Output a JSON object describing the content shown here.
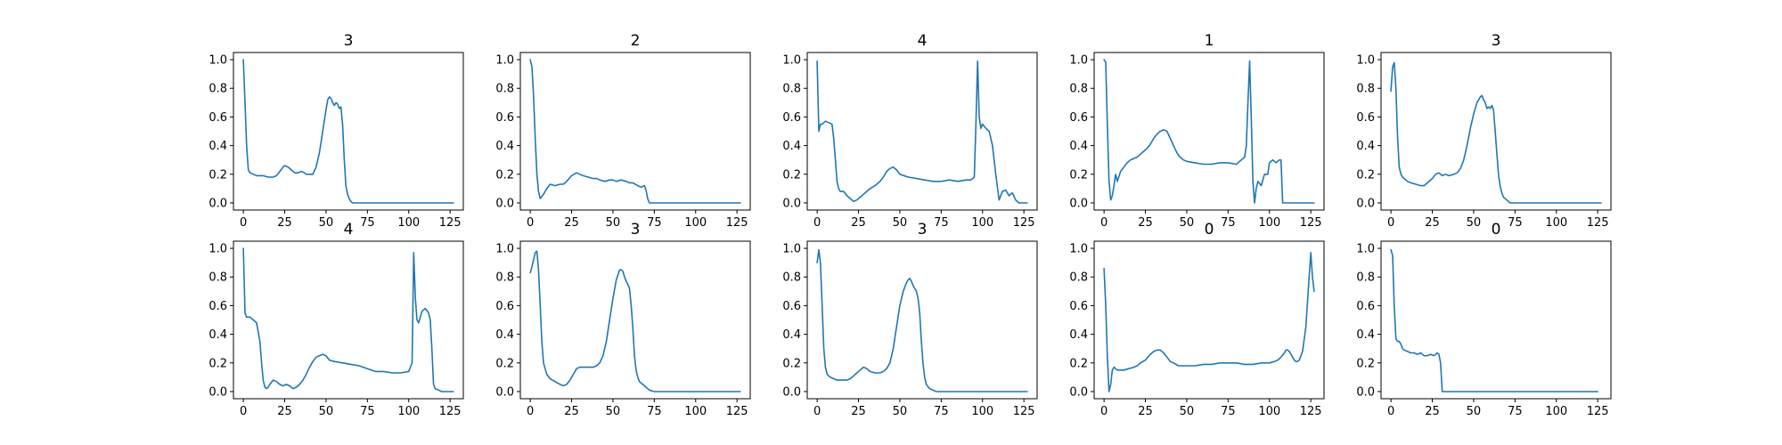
{
  "chart_data": [
    {
      "type": "line",
      "title": "3",
      "xlim": [
        -6,
        133
      ],
      "ylim": [
        -0.05,
        1.05
      ],
      "xticks": [
        0,
        25,
        50,
        75,
        100,
        125
      ],
      "yticks": [
        0.0,
        0.2,
        0.4,
        0.6,
        0.8,
        1.0
      ],
      "color": "#1f77b4",
      "x": [
        0,
        1,
        2,
        3,
        4,
        6,
        8,
        10,
        12,
        15,
        18,
        20,
        22,
        24,
        25,
        27,
        29,
        31,
        33,
        35,
        37,
        38,
        40,
        42,
        44,
        46,
        48,
        50,
        51,
        52,
        53,
        54,
        55,
        56,
        57,
        58,
        59,
        60,
        61,
        62,
        63,
        64,
        65,
        66,
        68,
        70,
        75,
        80,
        90,
        100,
        110,
        120,
        127
      ],
      "y": [
        1.0,
        0.7,
        0.4,
        0.23,
        0.21,
        0.2,
        0.19,
        0.19,
        0.19,
        0.18,
        0.18,
        0.19,
        0.22,
        0.25,
        0.26,
        0.25,
        0.23,
        0.21,
        0.21,
        0.22,
        0.21,
        0.2,
        0.2,
        0.2,
        0.25,
        0.35,
        0.5,
        0.65,
        0.72,
        0.74,
        0.73,
        0.7,
        0.68,
        0.7,
        0.69,
        0.66,
        0.67,
        0.55,
        0.3,
        0.12,
        0.06,
        0.03,
        0.01,
        0.0,
        0.0,
        0.0,
        0.0,
        0.0,
        0.0,
        0.0,
        0.0,
        0.0,
        0.0
      ]
    },
    {
      "type": "line",
      "title": "2",
      "xlim": [
        -6,
        133
      ],
      "ylim": [
        -0.05,
        1.05
      ],
      "xticks": [
        0,
        25,
        50,
        75,
        100,
        125
      ],
      "yticks": [
        0.0,
        0.2,
        0.4,
        0.6,
        0.8,
        1.0
      ],
      "color": "#1f77b4",
      "x": [
        0,
        1,
        2,
        3,
        4,
        5,
        6,
        8,
        10,
        12,
        15,
        18,
        20,
        22,
        25,
        28,
        30,
        32,
        35,
        38,
        40,
        42,
        45,
        48,
        50,
        52,
        55,
        58,
        60,
        62,
        65,
        67,
        69,
        70,
        71,
        72,
        75,
        80,
        90,
        100,
        110,
        120,
        127
      ],
      "y": [
        1.0,
        0.95,
        0.75,
        0.45,
        0.2,
        0.08,
        0.03,
        0.06,
        0.1,
        0.13,
        0.12,
        0.13,
        0.13,
        0.15,
        0.19,
        0.21,
        0.2,
        0.19,
        0.18,
        0.17,
        0.17,
        0.16,
        0.15,
        0.16,
        0.16,
        0.15,
        0.16,
        0.15,
        0.14,
        0.14,
        0.12,
        0.11,
        0.12,
        0.09,
        0.03,
        0.0,
        0.0,
        0.0,
        0.0,
        0.0,
        0.0,
        0.0,
        0.0
      ]
    },
    {
      "type": "line",
      "title": "4",
      "xlim": [
        -6,
        133
      ],
      "ylim": [
        -0.05,
        1.05
      ],
      "xticks": [
        0,
        25,
        50,
        75,
        100,
        125
      ],
      "yticks": [
        0.0,
        0.2,
        0.4,
        0.6,
        0.8,
        1.0
      ],
      "color": "#1f77b4",
      "x": [
        0,
        1,
        2,
        3,
        5,
        7,
        9,
        10,
        11,
        12,
        13,
        14,
        16,
        18,
        20,
        22,
        24,
        26,
        28,
        30,
        32,
        35,
        38,
        40,
        42,
        44,
        46,
        48,
        50,
        55,
        60,
        65,
        70,
        75,
        80,
        85,
        90,
        93,
        95,
        96,
        97,
        98,
        99,
        100,
        102,
        104,
        106,
        108,
        110,
        112,
        114,
        116,
        118,
        120,
        122,
        125,
        127
      ],
      "y": [
        0.99,
        0.5,
        0.55,
        0.55,
        0.57,
        0.56,
        0.55,
        0.45,
        0.3,
        0.15,
        0.1,
        0.08,
        0.08,
        0.05,
        0.03,
        0.01,
        0.02,
        0.04,
        0.06,
        0.08,
        0.1,
        0.12,
        0.15,
        0.18,
        0.22,
        0.24,
        0.25,
        0.23,
        0.2,
        0.18,
        0.17,
        0.16,
        0.15,
        0.15,
        0.16,
        0.15,
        0.16,
        0.16,
        0.18,
        0.55,
        0.99,
        0.6,
        0.52,
        0.55,
        0.52,
        0.5,
        0.4,
        0.2,
        0.02,
        0.08,
        0.09,
        0.05,
        0.07,
        0.02,
        0.0,
        0.0,
        0.0
      ]
    },
    {
      "type": "line",
      "title": "1",
      "xlim": [
        -6,
        133
      ],
      "ylim": [
        -0.05,
        1.05
      ],
      "xticks": [
        0,
        25,
        50,
        75,
        100,
        125
      ],
      "yticks": [
        0.0,
        0.2,
        0.4,
        0.6,
        0.8,
        1.0
      ],
      "color": "#1f77b4",
      "x": [
        0,
        1,
        2,
        3,
        4,
        5,
        6,
        7,
        8,
        10,
        12,
        14,
        16,
        18,
        20,
        22,
        24,
        26,
        28,
        30,
        32,
        34,
        36,
        38,
        40,
        42,
        44,
        46,
        48,
        50,
        55,
        60,
        65,
        70,
        75,
        80,
        83,
        85,
        86,
        87,
        88,
        89,
        90,
        91,
        92,
        93,
        95,
        97,
        99,
        100,
        102,
        104,
        106,
        107,
        108,
        110,
        115,
        120,
        125,
        127
      ],
      "y": [
        1.0,
        0.98,
        0.55,
        0.15,
        0.02,
        0.05,
        0.12,
        0.2,
        0.15,
        0.22,
        0.25,
        0.28,
        0.3,
        0.31,
        0.32,
        0.34,
        0.36,
        0.38,
        0.41,
        0.45,
        0.48,
        0.5,
        0.51,
        0.5,
        0.45,
        0.4,
        0.35,
        0.32,
        0.3,
        0.29,
        0.28,
        0.27,
        0.27,
        0.28,
        0.28,
        0.27,
        0.3,
        0.32,
        0.4,
        0.7,
        0.99,
        0.6,
        0.15,
        0.0,
        0.1,
        0.15,
        0.12,
        0.2,
        0.2,
        0.28,
        0.3,
        0.28,
        0.3,
        0.3,
        0.0,
        0.0,
        0.0,
        0.0,
        0.0,
        0.0
      ]
    },
    {
      "type": "line",
      "title": "3",
      "xlim": [
        -6,
        133
      ],
      "ylim": [
        -0.05,
        1.05
      ],
      "xticks": [
        0,
        25,
        50,
        75,
        100,
        125
      ],
      "yticks": [
        0.0,
        0.2,
        0.4,
        0.6,
        0.8,
        1.0
      ],
      "color": "#1f77b4",
      "x": [
        0,
        1,
        2,
        3,
        4,
        5,
        6,
        7,
        8,
        10,
        12,
        15,
        18,
        20,
        22,
        25,
        27,
        29,
        31,
        33,
        35,
        38,
        40,
        42,
        44,
        46,
        48,
        50,
        52,
        54,
        55,
        56,
        57,
        58,
        59,
        60,
        61,
        62,
        63,
        64,
        65,
        66,
        67,
        68,
        70,
        72,
        75,
        80,
        90,
        100,
        110,
        120,
        127
      ],
      "y": [
        0.78,
        0.95,
        0.98,
        0.8,
        0.45,
        0.25,
        0.2,
        0.18,
        0.17,
        0.15,
        0.14,
        0.13,
        0.12,
        0.12,
        0.14,
        0.17,
        0.2,
        0.21,
        0.19,
        0.2,
        0.19,
        0.2,
        0.21,
        0.24,
        0.3,
        0.4,
        0.52,
        0.62,
        0.7,
        0.74,
        0.75,
        0.72,
        0.7,
        0.66,
        0.67,
        0.66,
        0.68,
        0.65,
        0.5,
        0.35,
        0.2,
        0.12,
        0.07,
        0.04,
        0.02,
        0.0,
        0.0,
        0.0,
        0.0,
        0.0,
        0.0,
        0.0,
        0.0
      ]
    },
    {
      "type": "line",
      "title": "4",
      "xlim": [
        -6,
        133
      ],
      "ylim": [
        -0.05,
        1.05
      ],
      "xticks": [
        0,
        25,
        50,
        75,
        100,
        125
      ],
      "yticks": [
        0.0,
        0.2,
        0.4,
        0.6,
        0.8,
        1.0
      ],
      "color": "#1f77b4",
      "x": [
        0,
        1,
        2,
        3,
        4,
        6,
        8,
        10,
        11,
        12,
        13,
        14,
        15,
        16,
        18,
        20,
        22,
        24,
        26,
        28,
        30,
        32,
        34,
        36,
        38,
        40,
        42,
        44,
        46,
        48,
        50,
        52,
        55,
        60,
        65,
        70,
        75,
        80,
        85,
        90,
        95,
        100,
        102,
        103,
        104,
        105,
        106,
        107,
        108,
        110,
        112,
        113,
        114,
        115,
        116,
        118,
        120,
        125,
        127
      ],
      "y": [
        1.0,
        0.55,
        0.52,
        0.52,
        0.52,
        0.5,
        0.48,
        0.35,
        0.2,
        0.08,
        0.03,
        0.02,
        0.03,
        0.05,
        0.08,
        0.07,
        0.05,
        0.04,
        0.05,
        0.04,
        0.02,
        0.03,
        0.05,
        0.08,
        0.12,
        0.17,
        0.21,
        0.24,
        0.25,
        0.26,
        0.25,
        0.22,
        0.21,
        0.2,
        0.19,
        0.18,
        0.16,
        0.14,
        0.14,
        0.13,
        0.13,
        0.14,
        0.2,
        0.97,
        0.65,
        0.5,
        0.48,
        0.52,
        0.56,
        0.58,
        0.55,
        0.5,
        0.3,
        0.05,
        0.02,
        0.01,
        0.0,
        0.0,
        0.0
      ]
    },
    {
      "type": "line",
      "title": "3",
      "xlim": [
        -6,
        133
      ],
      "ylim": [
        -0.05,
        1.05
      ],
      "xticks": [
        0,
        25,
        50,
        75,
        100,
        125
      ],
      "yticks": [
        0.0,
        0.2,
        0.4,
        0.6,
        0.8,
        1.0
      ],
      "color": "#1f77b4",
      "x": [
        0,
        1,
        2,
        3,
        4,
        5,
        6,
        7,
        8,
        10,
        12,
        15,
        18,
        20,
        22,
        24,
        26,
        28,
        30,
        32,
        35,
        38,
        40,
        42,
        44,
        46,
        48,
        50,
        52,
        54,
        55,
        56,
        57,
        58,
        59,
        60,
        61,
        62,
        63,
        64,
        65,
        66,
        68,
        70,
        72,
        75,
        80,
        90,
        100,
        110,
        120,
        127
      ],
      "y": [
        0.83,
        0.87,
        0.92,
        0.97,
        0.98,
        0.85,
        0.6,
        0.35,
        0.2,
        0.12,
        0.09,
        0.07,
        0.05,
        0.04,
        0.05,
        0.08,
        0.12,
        0.16,
        0.17,
        0.17,
        0.17,
        0.17,
        0.18,
        0.2,
        0.25,
        0.35,
        0.5,
        0.65,
        0.78,
        0.85,
        0.85,
        0.84,
        0.8,
        0.77,
        0.75,
        0.72,
        0.6,
        0.45,
        0.25,
        0.15,
        0.1,
        0.07,
        0.05,
        0.03,
        0.01,
        0.0,
        0.0,
        0.0,
        0.0,
        0.0,
        0.0,
        0.0
      ]
    },
    {
      "type": "line",
      "title": "3",
      "xlim": [
        -6,
        133
      ],
      "ylim": [
        -0.05,
        1.05
      ],
      "xticks": [
        0,
        25,
        50,
        75,
        100,
        125
      ],
      "yticks": [
        0.0,
        0.2,
        0.4,
        0.6,
        0.8,
        1.0
      ],
      "color": "#1f77b4",
      "x": [
        0,
        1,
        2,
        3,
        4,
        5,
        6,
        7,
        8,
        10,
        12,
        15,
        18,
        20,
        22,
        24,
        26,
        28,
        30,
        32,
        35,
        38,
        40,
        42,
        44,
        46,
        48,
        50,
        52,
        54,
        55,
        56,
        57,
        58,
        59,
        60,
        61,
        62,
        63,
        64,
        65,
        66,
        68,
        70,
        72,
        75,
        80,
        90,
        100,
        110,
        120,
        127
      ],
      "y": [
        0.9,
        0.99,
        0.9,
        0.6,
        0.3,
        0.17,
        0.12,
        0.11,
        0.1,
        0.09,
        0.08,
        0.08,
        0.08,
        0.09,
        0.11,
        0.13,
        0.15,
        0.17,
        0.16,
        0.14,
        0.13,
        0.13,
        0.14,
        0.16,
        0.2,
        0.3,
        0.45,
        0.6,
        0.7,
        0.76,
        0.78,
        0.79,
        0.77,
        0.74,
        0.72,
        0.7,
        0.65,
        0.55,
        0.35,
        0.2,
        0.1,
        0.05,
        0.02,
        0.01,
        0.0,
        0.0,
        0.0,
        0.0,
        0.0,
        0.0,
        0.0,
        0.0
      ]
    },
    {
      "type": "line",
      "title": "0",
      "xlim": [
        -6,
        133
      ],
      "ylim": [
        -0.05,
        1.05
      ],
      "xticks": [
        0,
        25,
        50,
        75,
        100,
        125
      ],
      "yticks": [
        0.0,
        0.2,
        0.4,
        0.6,
        0.8,
        1.0
      ],
      "color": "#1f77b4",
      "x": [
        0,
        1,
        2,
        3,
        4,
        5,
        6,
        7,
        8,
        10,
        12,
        15,
        18,
        20,
        22,
        25,
        28,
        30,
        32,
        34,
        36,
        38,
        40,
        42,
        45,
        48,
        50,
        55,
        60,
        65,
        70,
        75,
        80,
        85,
        90,
        95,
        100,
        103,
        105,
        107,
        109,
        110,
        111,
        112,
        113,
        114,
        115,
        116,
        117,
        118,
        120,
        122,
        124,
        125,
        126,
        127
      ],
      "y": [
        0.86,
        0.6,
        0.25,
        0.0,
        0.05,
        0.15,
        0.17,
        0.16,
        0.15,
        0.15,
        0.15,
        0.16,
        0.17,
        0.18,
        0.2,
        0.22,
        0.26,
        0.28,
        0.29,
        0.29,
        0.27,
        0.24,
        0.21,
        0.2,
        0.18,
        0.18,
        0.18,
        0.18,
        0.19,
        0.19,
        0.2,
        0.2,
        0.2,
        0.19,
        0.19,
        0.2,
        0.2,
        0.21,
        0.22,
        0.24,
        0.27,
        0.29,
        0.29,
        0.28,
        0.26,
        0.24,
        0.22,
        0.21,
        0.21,
        0.22,
        0.28,
        0.45,
        0.8,
        0.97,
        0.8,
        0.7
      ]
    },
    {
      "type": "line",
      "title": "0",
      "xlim": [
        -6,
        133
      ],
      "ylim": [
        -0.05,
        1.05
      ],
      "xticks": [
        0,
        25,
        50,
        75,
        100,
        125
      ],
      "yticks": [
        0.0,
        0.2,
        0.4,
        0.6,
        0.8,
        1.0
      ],
      "color": "#1f77b4",
      "x": [
        0,
        1,
        2,
        3,
        4,
        5,
        6,
        7,
        8,
        10,
        12,
        14,
        16,
        18,
        20,
        22,
        24,
        26,
        28,
        29,
        30,
        31,
        32,
        35,
        40,
        50,
        60,
        70,
        80,
        90,
        100,
        110,
        120,
        125
      ],
      "y": [
        0.99,
        0.95,
        0.6,
        0.37,
        0.35,
        0.35,
        0.33,
        0.3,
        0.29,
        0.28,
        0.27,
        0.27,
        0.26,
        0.27,
        0.25,
        0.25,
        0.26,
        0.25,
        0.27,
        0.26,
        0.2,
        0.0,
        0.0,
        0.0,
        0.0,
        0.0,
        0.0,
        0.0,
        0.0,
        0.0,
        0.0,
        0.0,
        0.0,
        0.0
      ]
    }
  ]
}
